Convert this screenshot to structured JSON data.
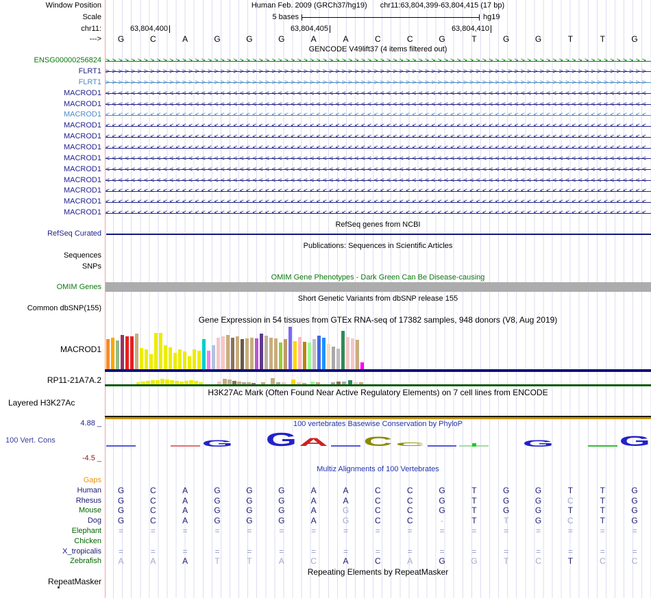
{
  "header": {
    "window_position_label": "Window Position",
    "assembly": "Human Feb. 2009 (GRCh37/hg19)",
    "position": "chr11:63,804,399-63,804,415 (17 bp)",
    "scale_label": "Scale",
    "scale_value": "5 bases",
    "scale_right": "hg19",
    "chrom_label": "chr11:",
    "coords": [
      "63,804,400",
      "63,804,405",
      "63,804,410"
    ],
    "strand_label": "--->"
  },
  "sequence": [
    "G",
    "C",
    "A",
    "G",
    "G",
    "G",
    "A",
    "A",
    "C",
    "C",
    "G",
    "T",
    "G",
    "G",
    "T",
    "T",
    "G"
  ],
  "gencode": {
    "title": "GENCODE V49lift37 (4 items filtered out)",
    "genes": [
      {
        "label": "ENSG00000256824",
        "color": "#0B7A0B",
        "dir": "right"
      },
      {
        "label": "FLRT1",
        "color": "#22228C",
        "dir": "right"
      },
      {
        "label": "FLRT1",
        "color": "#4C8BC8",
        "dir": "right"
      },
      {
        "label": "MACROD1",
        "color": "#22228C",
        "dir": "left"
      },
      {
        "label": "MACROD1",
        "color": "#22228C",
        "dir": "left"
      },
      {
        "label": "MACROD1",
        "color": "#4C8BC8",
        "dir": "left"
      },
      {
        "label": "MACROD1",
        "color": "#22228C",
        "dir": "left"
      },
      {
        "label": "MACROD1",
        "color": "#22228C",
        "dir": "left"
      },
      {
        "label": "MACROD1",
        "color": "#22228C",
        "dir": "left"
      },
      {
        "label": "MACROD1",
        "color": "#22228C",
        "dir": "left"
      },
      {
        "label": "MACROD1",
        "color": "#22228C",
        "dir": "left"
      },
      {
        "label": "MACROD1",
        "color": "#22228C",
        "dir": "left"
      },
      {
        "label": "MACROD1",
        "color": "#22228C",
        "dir": "left"
      },
      {
        "label": "MACROD1",
        "color": "#22228C",
        "dir": "left"
      },
      {
        "label": "MACROD1",
        "color": "#22228C",
        "dir": "left"
      }
    ]
  },
  "refseq": {
    "title": "RefSeq genes from NCBI",
    "label": "RefSeq Curated",
    "line_color": "#14147E"
  },
  "publications": {
    "title": "Publications: Sequences in Scientific Articles",
    "sequences_label": "Sequences",
    "snps_label": "SNPs"
  },
  "omim": {
    "title": "OMIM Gene Phenotypes - Dark Green Can Be Disease-causing",
    "label": "OMIM Genes",
    "bar_color": "#ACACAC"
  },
  "dbsnp": {
    "title": "Short Genetic Variants from dbSNP release 155",
    "label": "Common dbSNP(155)"
  },
  "gtex": {
    "title": "Gene Expression in 54 tissues from GTEx RNA-seq of 17382 samples, 948 donors (V8, Aug 2019)",
    "label": "MACROD1",
    "baseline_color": "#10107A",
    "bars": [
      [
        "#F28C28",
        44
      ],
      [
        "#FFA500",
        46
      ],
      [
        "#8FBC8F",
        42
      ],
      [
        "#993366",
        50
      ],
      [
        "#E62020",
        48
      ],
      [
        "#E62020",
        48
      ],
      [
        "#C8AD7F",
        52
      ],
      [
        "#EDED00",
        31
      ],
      [
        "#EDED00",
        29
      ],
      [
        "#EDED00",
        22
      ],
      [
        "#EDED00",
        53
      ],
      [
        "#EDED00",
        53
      ],
      [
        "#EDED00",
        35
      ],
      [
        "#EDED00",
        32
      ],
      [
        "#EDED00",
        24
      ],
      [
        "#EDED00",
        29
      ],
      [
        "#EDED00",
        26
      ],
      [
        "#EDED00",
        19
      ],
      [
        "#EDED00",
        29
      ],
      [
        "#EDED00",
        27
      ],
      [
        "#00CED1",
        44
      ],
      [
        "#EE82EE",
        27
      ],
      [
        "#AFC3E0",
        35
      ],
      [
        "#F6C6C6",
        46
      ],
      [
        "#F6C6C6",
        48
      ],
      [
        "#C8AD7F",
        50
      ],
      [
        "#8B7355",
        46
      ],
      [
        "#C8AD7F",
        48
      ],
      [
        "#6B5B45",
        44
      ],
      [
        "#C8AD7F",
        45
      ],
      [
        "#C8AD7F",
        46
      ],
      [
        "#BA55D3",
        45
      ],
      [
        "#5D3A8E",
        52
      ],
      [
        "#BDB2A0",
        49
      ],
      [
        "#C8AD7F",
        46
      ],
      [
        "#C8AD7F",
        45
      ],
      [
        "#9ACD32",
        39
      ],
      [
        "#C19A6B",
        44
      ],
      [
        "#7B68EE",
        62
      ],
      [
        "#FFD700",
        41
      ],
      [
        "#FFB6C1",
        47
      ],
      [
        "#B8860B",
        40
      ],
      [
        "#98FB98",
        39
      ],
      [
        "#C0C0C0",
        44
      ],
      [
        "#4169E1",
        49
      ],
      [
        "#1E90FF",
        46
      ],
      [
        "#FFDAB9",
        37
      ],
      [
        "#A9A9A9",
        33
      ],
      [
        "#BDBDBD",
        30
      ],
      [
        "#2E8B57",
        56
      ],
      [
        "#F6C6C6",
        47
      ],
      [
        "#F6C6C6",
        45
      ],
      [
        "#C8AD7F",
        43
      ],
      [
        "#FF00FF",
        10
      ]
    ]
  },
  "rp11": {
    "label": "RP11-21A7A.2",
    "baseline_color": "#0A5A0A",
    "bars": [
      [
        199,
        3,
        "#EDED00"
      ],
      [
        206,
        4,
        "#EDED00"
      ],
      [
        213,
        5,
        "#EDED00"
      ],
      [
        220,
        6,
        "#EDED00"
      ],
      [
        227,
        6,
        "#EDED00"
      ],
      [
        234,
        8,
        "#EDED00"
      ],
      [
        241,
        7,
        "#EDED00"
      ],
      [
        248,
        6,
        "#EDED00"
      ],
      [
        255,
        5,
        "#EDED00"
      ],
      [
        262,
        4,
        "#EDED00"
      ],
      [
        269,
        5,
        "#EDED00"
      ],
      [
        276,
        6,
        "#EDED00"
      ],
      [
        283,
        5,
        "#EDED00"
      ],
      [
        290,
        3,
        "#EDED00"
      ],
      [
        317,
        4,
        "#F6C6C6"
      ],
      [
        325,
        8,
        "#C8AD7F"
      ],
      [
        332,
        7,
        "#BDB2A0"
      ],
      [
        339,
        5,
        "#8B7355"
      ],
      [
        346,
        4,
        "#C8AD7F"
      ],
      [
        353,
        3,
        "#A9A9A9"
      ],
      [
        360,
        3,
        "#C8AD7F"
      ],
      [
        367,
        2,
        "#BA55D3"
      ],
      [
        381,
        3,
        "#C8AD7F"
      ],
      [
        395,
        9,
        "#C8AD7F"
      ],
      [
        403,
        3,
        "#A9A9A9"
      ],
      [
        411,
        3,
        "#F6C6C6"
      ],
      [
        425,
        7,
        "#FFD700"
      ],
      [
        433,
        3,
        "#F6C6C6"
      ],
      [
        441,
        2,
        "#C8AD7F"
      ],
      [
        453,
        4,
        "#98FB98"
      ],
      [
        461,
        3,
        "#C8AD7F"
      ],
      [
        483,
        3,
        "#A9A9A9"
      ],
      [
        491,
        4,
        "#8B7355"
      ],
      [
        499,
        4,
        "#A9A9A9"
      ],
      [
        508,
        6,
        "#2E8B57"
      ],
      [
        516,
        3,
        "#F6C6C6"
      ],
      [
        524,
        3,
        "#C8AD7F"
      ]
    ]
  },
  "h3k27ac": {
    "title": "H3K27Ac Mark (Often Found Near Active Regulatory Elements) on 7 cell lines from ENCODE",
    "label": "Layered H3K27Ac",
    "line_color": "#C89600"
  },
  "phylop": {
    "title": "100 vertebrates Basewise Conservation by PhyloP",
    "label": "100 Vert. Cons",
    "max_label": "4.88 _",
    "min_label": "-4.5 _",
    "logo": [
      {
        "col": 1,
        "kind": "dash",
        "color": "#5555DD",
        "h": 2
      },
      {
        "col": 3,
        "kind": "dash",
        "color": "#E07070",
        "h": 2
      },
      {
        "col": 4,
        "kind": "letter",
        "ch": "G",
        "color": "#2222CC",
        "h": 10
      },
      {
        "col": 6,
        "kind": "letter",
        "ch": "G",
        "color": "#2222CC",
        "h": 20
      },
      {
        "col": 7,
        "kind": "letter",
        "ch": "A",
        "color": "#CC2222",
        "h": 12
      },
      {
        "col": 8,
        "kind": "dash",
        "color": "#5555DD",
        "h": 2
      },
      {
        "col": 9,
        "kind": "letter",
        "ch": "C",
        "color": "#8B8B00",
        "h": 14
      },
      {
        "col": 10,
        "kind": "letter",
        "ch": "C",
        "color": "#8B8B00",
        "h": 5
      },
      {
        "col": 11,
        "kind": "dash",
        "color": "#5555DD",
        "h": 2
      },
      {
        "col": 12,
        "kind": "dash",
        "color": "#9FDD9F",
        "h": 1
      },
      {
        "col": 12,
        "kind": "dot",
        "color": "#22CC22",
        "h": 5
      },
      {
        "col": 14,
        "kind": "letter",
        "ch": "G",
        "color": "#2222CC",
        "h": 10
      },
      {
        "col": 16,
        "kind": "dash",
        "color": "#33BB33",
        "h": 2
      },
      {
        "col": 17,
        "kind": "letter",
        "ch": "G",
        "color": "#2222CC",
        "h": 15
      }
    ]
  },
  "multiz": {
    "title": "Multiz Alignments of 100 Vertebrates",
    "species": [
      {
        "name": "Gaps",
        "color": "#E8920C",
        "bases": []
      },
      {
        "name": "Human",
        "color": "#1A1A74",
        "bases": [
          [
            "G",
            0
          ],
          [
            "C",
            0
          ],
          [
            "A",
            0
          ],
          [
            "G",
            0
          ],
          [
            "G",
            0
          ],
          [
            "G",
            0
          ],
          [
            "A",
            0
          ],
          [
            "A",
            0
          ],
          [
            "C",
            0
          ],
          [
            "C",
            0
          ],
          [
            "G",
            0
          ],
          [
            "T",
            0
          ],
          [
            "G",
            0
          ],
          [
            "G",
            0
          ],
          [
            "T",
            0
          ],
          [
            "T",
            0
          ],
          [
            "G",
            0
          ]
        ]
      },
      {
        "name": "Rhesus",
        "color": "#1A1A74",
        "bases": [
          [
            "G",
            0
          ],
          [
            "C",
            0
          ],
          [
            "A",
            0
          ],
          [
            "G",
            0
          ],
          [
            "G",
            0
          ],
          [
            "G",
            0
          ],
          [
            "A",
            0
          ],
          [
            "A",
            0
          ],
          [
            "C",
            0
          ],
          [
            "C",
            0
          ],
          [
            "G",
            0
          ],
          [
            "T",
            0
          ],
          [
            "G",
            0
          ],
          [
            "G",
            0
          ],
          [
            "C",
            1
          ],
          [
            "T",
            0
          ],
          [
            "G",
            0
          ]
        ]
      },
      {
        "name": "Mouse",
        "color": "#006400",
        "bases": [
          [
            "G",
            0
          ],
          [
            "C",
            0
          ],
          [
            "A",
            0
          ],
          [
            "G",
            0
          ],
          [
            "G",
            0
          ],
          [
            "G",
            0
          ],
          [
            "A",
            0
          ],
          [
            "G",
            1
          ],
          [
            "C",
            0
          ],
          [
            "C",
            0
          ],
          [
            "G",
            0
          ],
          [
            "T",
            0
          ],
          [
            "G",
            0
          ],
          [
            "G",
            0
          ],
          [
            "T",
            0
          ],
          [
            "T",
            0
          ],
          [
            "G",
            0
          ]
        ]
      },
      {
        "name": "Dog",
        "color": "#1A1A74",
        "bases": [
          [
            "G",
            0
          ],
          [
            "C",
            0
          ],
          [
            "A",
            0
          ],
          [
            "G",
            0
          ],
          [
            "G",
            0
          ],
          [
            "G",
            0
          ],
          [
            "A",
            0
          ],
          [
            "G",
            1
          ],
          [
            "C",
            0
          ],
          [
            "C",
            0
          ],
          [
            "-",
            1
          ],
          [
            "T",
            0
          ],
          [
            "T",
            1
          ],
          [
            "G",
            0
          ],
          [
            "C",
            1
          ],
          [
            "T",
            0
          ],
          [
            "G",
            0
          ]
        ]
      },
      {
        "name": "Elephant",
        "color": "#006400",
        "bases": [
          [
            "=",
            1
          ],
          [
            "=",
            1
          ],
          [
            "=",
            1
          ],
          [
            "=",
            1
          ],
          [
            "=",
            1
          ],
          [
            "=",
            1
          ],
          [
            "=",
            1
          ],
          [
            "=",
            1
          ],
          [
            "=",
            1
          ],
          [
            "=",
            1
          ],
          [
            "=",
            1
          ],
          [
            "=",
            1
          ],
          [
            "=",
            1
          ],
          [
            "=",
            1
          ],
          [
            "=",
            1
          ],
          [
            "=",
            1
          ],
          [
            "=",
            1
          ]
        ]
      },
      {
        "name": "Chicken",
        "color": "#006400",
        "bases": []
      },
      {
        "name": "X_tropicalis",
        "color": "#1A1A74",
        "bases": [
          [
            "=",
            1
          ],
          [
            "=",
            1
          ],
          [
            "=",
            1
          ],
          [
            "=",
            1
          ],
          [
            "=",
            1
          ],
          [
            "=",
            1
          ],
          [
            "=",
            1
          ],
          [
            "=",
            1
          ],
          [
            "=",
            1
          ],
          [
            "=",
            1
          ],
          [
            "=",
            1
          ],
          [
            "=",
            1
          ],
          [
            "=",
            1
          ],
          [
            "=",
            1
          ],
          [
            "=",
            1
          ],
          [
            "=",
            1
          ],
          [
            "=",
            1
          ]
        ]
      },
      {
        "name": "Zebrafish",
        "color": "#006400",
        "bases": [
          [
            "A",
            1
          ],
          [
            "A",
            1
          ],
          [
            "A",
            0
          ],
          [
            "T",
            1
          ],
          [
            "T",
            1
          ],
          [
            "A",
            1
          ],
          [
            "C",
            1
          ],
          [
            "A",
            0
          ],
          [
            "C",
            0
          ],
          [
            "A",
            1
          ],
          [
            "G",
            0
          ],
          [
            "G",
            1
          ],
          [
            "T",
            1
          ],
          [
            "C",
            1
          ],
          [
            "T",
            0
          ],
          [
            "C",
            1
          ],
          [
            "C",
            1
          ]
        ]
      }
    ]
  },
  "repeatmasker": {
    "title": "Repeating Elements by RepeatMasker",
    "label": "RepeatMasker"
  }
}
